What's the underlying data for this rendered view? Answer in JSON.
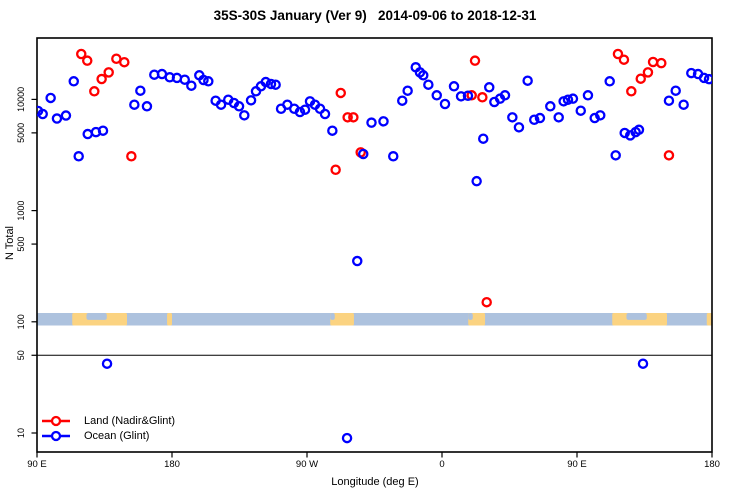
{
  "title": "35S-30S January (Ver 9)   2014-09-06 to 2018-12-31",
  "axes": {
    "x": {
      "label": "Longitude (deg E)",
      "ticks": [
        {
          "deg": 0,
          "label": "90 E"
        },
        {
          "deg": 90,
          "label": "180"
        },
        {
          "deg": 180,
          "label": "90 W"
        },
        {
          "deg": 270,
          "label": "0"
        },
        {
          "deg": 360,
          "label": "90 E"
        },
        {
          "deg": 450,
          "label": "180"
        }
      ],
      "note": "axis spans 450 degrees: 90E eastward to 180, 90W, 0, 90E, 180; the 90E-180 sector is drawn twice"
    },
    "y": {
      "label": "N Total",
      "scale": "log10",
      "ticks": [
        {
          "n": 10000,
          "label": "10000"
        },
        {
          "n": 5000,
          "label": "5000"
        },
        {
          "n": 1000,
          "label": "1000"
        },
        {
          "n": 500,
          "label": "500"
        },
        {
          "n": 100,
          "label": "100"
        },
        {
          "n": 50,
          "label": "50"
        },
        {
          "n": 10,
          "label": "10"
        }
      ],
      "range_approx": [
        7,
        36000
      ]
    }
  },
  "legend": [
    {
      "label": "Land (Nadir&Glint)",
      "color": "#ff0000"
    },
    {
      "label": "Ocean (Glint)",
      "color": "#0000ff"
    }
  ],
  "colors": {
    "land_series": "#ff0000",
    "ocean_series": "#0000ff",
    "band_ocean": "#adc2de",
    "band_land": "#fbd381",
    "axis": "#000000"
  },
  "annotations": {
    "reference_line_n": 50,
    "land_ocean_band": {
      "center_n": 100,
      "description": "thin map ribbon of the 35S-30S latitude strip: light-blue = ocean, orange = land",
      "land_segments_deg": [
        [
          23.5,
          60
        ],
        [
          86.7,
          90
        ],
        [
          195.5,
          211.3
        ],
        [
          287.5,
          298.7
        ],
        [
          383.5,
          420
        ],
        [
          446.5,
          450
        ]
      ],
      "ocean_notches_deg": [
        [
          33,
          46.5
        ],
        [
          195.5,
          198.5
        ],
        [
          287.5,
          290.5
        ],
        [
          393,
          406.5
        ]
      ]
    }
  },
  "chart_data": {
    "type": "scatter",
    "title": "35S-30S January (Ver 9)   2014-09-06 to 2018-12-31",
    "xlabel": "Longitude (deg E)",
    "ylabel": "N Total",
    "x_encoding": "degrees east of 90E along the displayed axis (0-450)",
    "y_scale": "log10",
    "ylim": [
      7,
      36000
    ],
    "grid": false,
    "legend_position": "bottom-left",
    "series": [
      {
        "name": "Land (Nadir&Glint)",
        "color": "#ff0000",
        "points": [
          [
            29.5,
            25600
          ],
          [
            33.5,
            22300
          ],
          [
            38.2,
            11830
          ],
          [
            43.1,
            15250
          ],
          [
            47.8,
            17500
          ],
          [
            52.9,
            23200
          ],
          [
            58.2,
            21600
          ],
          [
            62.9,
            3080
          ],
          [
            199.1,
            2330
          ],
          [
            202.5,
            11430
          ],
          [
            207.1,
            6900
          ],
          [
            210.9,
            6900
          ],
          [
            215.8,
            3340
          ],
          [
            289.8,
            10890
          ],
          [
            292.0,
            22300
          ],
          [
            296.9,
            10450
          ],
          [
            299.8,
            150
          ],
          [
            387.3,
            25600
          ],
          [
            391.3,
            22750
          ],
          [
            396.2,
            11830
          ],
          [
            402.5,
            15350
          ],
          [
            407.3,
            17500
          ],
          [
            410.7,
            21700
          ],
          [
            416.2,
            21200
          ],
          [
            421.3,
            3140
          ]
        ]
      },
      {
        "name": "Ocean (Glint)",
        "color": "#0000ff",
        "points": [
          [
            0.7,
            7870
          ],
          [
            3.8,
            7390
          ],
          [
            9.1,
            10300
          ],
          [
            13.3,
            6730
          ],
          [
            19.3,
            7160
          ],
          [
            24.5,
            14550
          ],
          [
            27.8,
            3080
          ],
          [
            33.8,
            4880
          ],
          [
            39.3,
            5080
          ],
          [
            44.0,
            5230
          ],
          [
            46.7,
            42
          ],
          [
            64.9,
            8960
          ],
          [
            68.9,
            11970
          ],
          [
            73.3,
            8670
          ],
          [
            78.2,
            16670
          ],
          [
            83.3,
            16900
          ],
          [
            88.5,
            15800
          ],
          [
            93.3,
            15600
          ],
          [
            98.5,
            15030
          ],
          [
            102.9,
            13280
          ],
          [
            108.2,
            16470
          ],
          [
            111.0,
            14940
          ],
          [
            114.2,
            14550
          ],
          [
            119.1,
            9730
          ],
          [
            122.7,
            8960
          ],
          [
            127.5,
            9940
          ],
          [
            131.3,
            9280
          ],
          [
            134.7,
            8670
          ],
          [
            138.2,
            7190
          ],
          [
            142.7,
            9810
          ],
          [
            146.0,
            11830
          ],
          [
            149.3,
            13120
          ],
          [
            152.5,
            14330
          ],
          [
            156.0,
            13770
          ],
          [
            159.1,
            13560
          ],
          [
            162.7,
            8240
          ],
          [
            166.9,
            8960
          ],
          [
            171.5,
            8240
          ],
          [
            175.3,
            7700
          ],
          [
            178.7,
            8080
          ],
          [
            182.0,
            9610
          ],
          [
            185.3,
            8960
          ],
          [
            188.7,
            8240
          ],
          [
            192.0,
            7390
          ],
          [
            196.9,
            5230
          ],
          [
            206.7,
            9
          ],
          [
            213.5,
            352
          ],
          [
            217.5,
            3230
          ],
          [
            223.0,
            6180
          ],
          [
            231.0,
            6350
          ],
          [
            237.5,
            3080
          ],
          [
            243.5,
            9730
          ],
          [
            247.1,
            11970
          ],
          [
            252.5,
            19450
          ],
          [
            255.3,
            17500
          ],
          [
            257.5,
            16470
          ],
          [
            260.9,
            13560
          ],
          [
            266.5,
            10890
          ],
          [
            272.0,
            9090
          ],
          [
            278.0,
            13120
          ],
          [
            282.7,
            10660
          ],
          [
            287.3,
            10790
          ],
          [
            293.1,
            1840
          ],
          [
            297.5,
            4430
          ],
          [
            301.5,
            12850
          ],
          [
            304.9,
            9480
          ],
          [
            308.7,
            10150
          ],
          [
            312.0,
            10890
          ],
          [
            316.9,
            6900
          ],
          [
            321.3,
            5610
          ],
          [
            327.1,
            14730
          ],
          [
            331.5,
            6560
          ],
          [
            335.3,
            6800
          ],
          [
            342.2,
            8670
          ],
          [
            347.8,
            6900
          ],
          [
            351.1,
            9610
          ],
          [
            354.0,
            9940
          ],
          [
            357.3,
            10150
          ],
          [
            362.5,
            7910
          ],
          [
            367.3,
            10890
          ],
          [
            371.8,
            6800
          ],
          [
            375.5,
            7190
          ],
          [
            381.8,
            14550
          ],
          [
            385.8,
            3140
          ],
          [
            391.8,
            4990
          ],
          [
            395.5,
            4750
          ],
          [
            399.1,
            5080
          ],
          [
            401.3,
            5330
          ],
          [
            404.0,
            42
          ],
          [
            421.3,
            9730
          ],
          [
            425.8,
            11970
          ],
          [
            431.1,
            8960
          ],
          [
            436.2,
            17250
          ],
          [
            440.7,
            16900
          ],
          [
            444.7,
            15600
          ],
          [
            448.0,
            15200
          ]
        ]
      }
    ]
  }
}
